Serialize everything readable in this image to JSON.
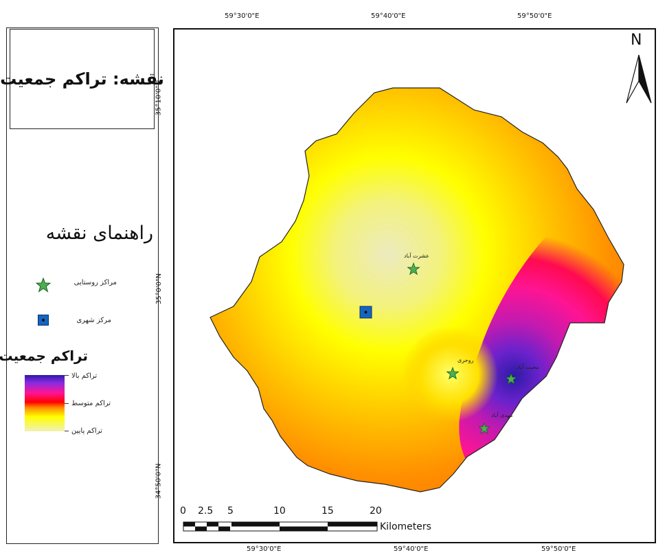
{
  "title": "نقشه: تراکم جمعیت",
  "legend": {
    "heading": "راهنمای نقشه",
    "rural_label": "مراکز روستایی",
    "urban_label": "مرکز شهری",
    "density_heading": "تراکم جمعیت",
    "high_label": "تراکم بالا",
    "medium_label": "تراکم متوسط",
    "low_label": "تراکم پایین"
  },
  "coordinates": {
    "top": [
      "59°30'0\"E",
      "59°40'0\"E",
      "59°50'0\"E"
    ],
    "bottom": [
      "59°30'0\"E",
      "59°40'0\"E",
      "59°50'0\"E"
    ],
    "left": [
      "35°10'0\"N",
      "35°0'0\"N",
      "34°50'0\"N"
    ],
    "right": [
      "",
      "",
      ""
    ]
  },
  "scale_bar": {
    "ticks": [
      "0",
      "2.5",
      "5",
      "10",
      "15",
      "20"
    ],
    "unit": "Kilometers"
  },
  "north_arrow": {
    "label": "N",
    "icon": "north-arrow-icon"
  },
  "places": {
    "p1": "عشرت آباد",
    "p2": "روحری",
    "p3": "محبت آباد",
    "p4": "مهدی آباد"
  },
  "colors": {
    "low": "#f0f0b8",
    "yellow": "#ffff00",
    "orange": "#ff8c00",
    "red": "#ff0000",
    "pink": "#ff1493",
    "high": "#2e1aa8",
    "rural_star": "#4caf50",
    "urban_square": "#1565c0"
  }
}
